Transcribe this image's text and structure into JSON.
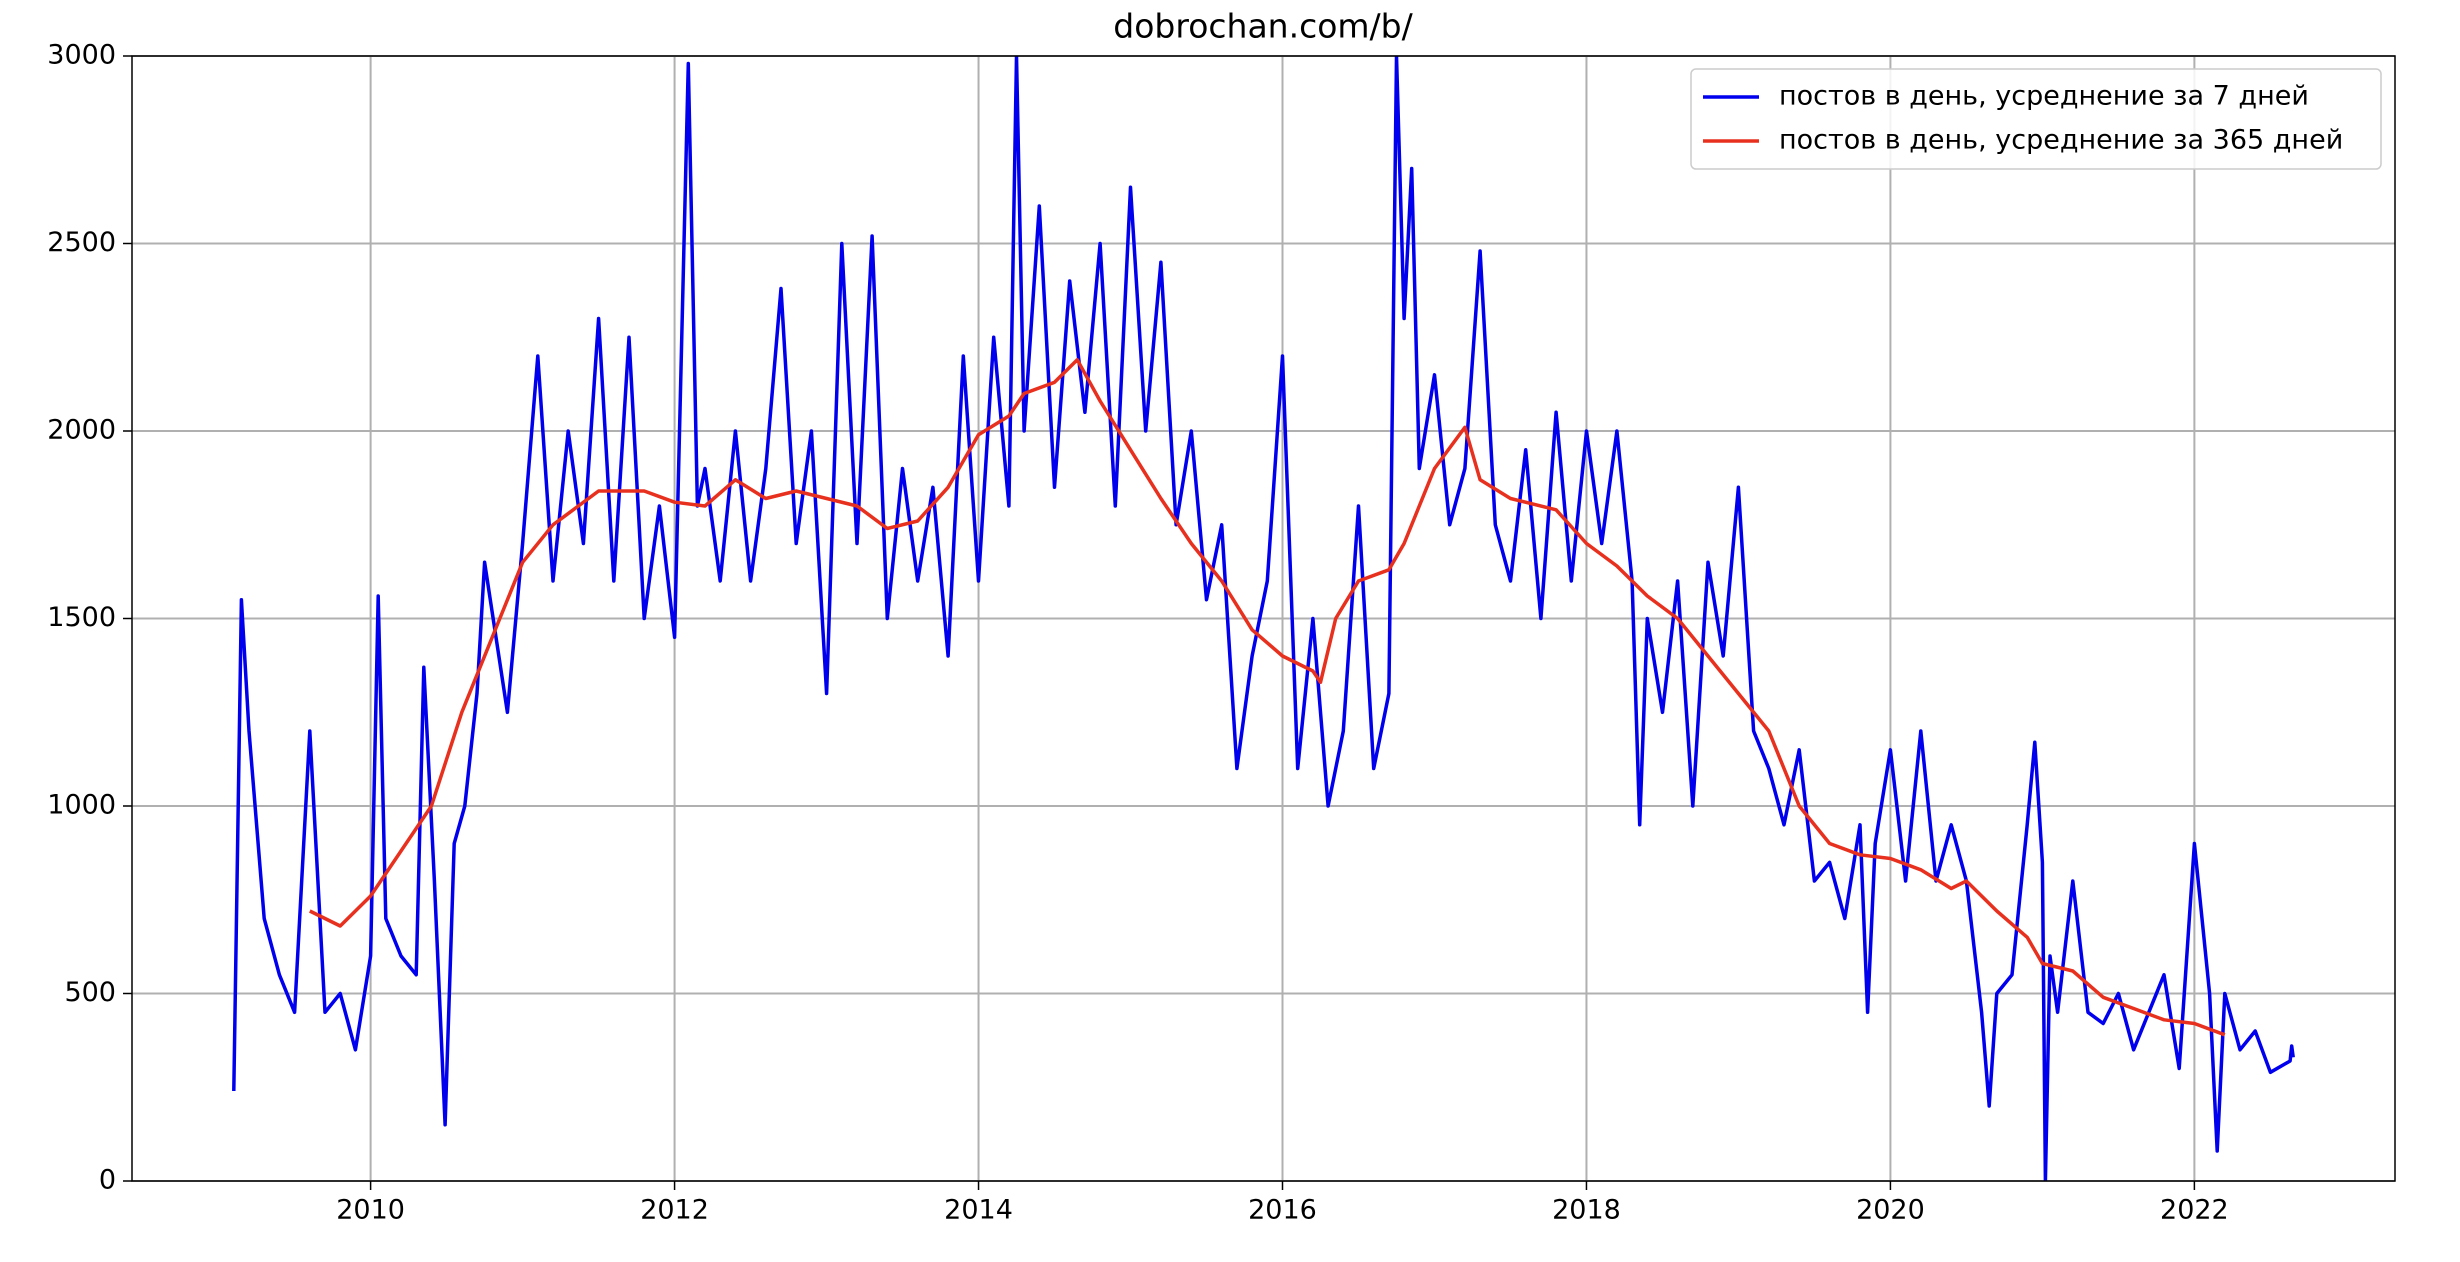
{
  "chart_data": {
    "type": "line",
    "title": "dobrochan.com/b/",
    "xlim": [
      2008.43,
      2023.32
    ],
    "ylim": [
      0,
      3000
    ],
    "xticks": [
      2010,
      2012,
      2014,
      2016,
      2018,
      2020,
      2022
    ],
    "yticks": [
      0,
      500,
      1000,
      1500,
      2000,
      2500,
      3000
    ],
    "grid": true,
    "legend": "upper right",
    "series": [
      {
        "name": "постов в день, усреднение за 7 дней",
        "color": "#0000ee",
        "x": [
          2009.1,
          2009.15,
          2009.2,
          2009.3,
          2009.4,
          2009.5,
          2009.6,
          2009.7,
          2009.8,
          2009.9,
          2010.0,
          2010.05,
          2010.1,
          2010.2,
          2010.3,
          2010.35,
          2010.42,
          2010.49,
          2010.55,
          2010.62,
          2010.7,
          2010.75,
          2010.9,
          2011.0,
          2011.1,
          2011.2,
          2011.3,
          2011.4,
          2011.5,
          2011.6,
          2011.7,
          2011.8,
          2011.9,
          2012.0,
          2012.09,
          2012.15,
          2012.2,
          2012.3,
          2012.4,
          2012.5,
          2012.6,
          2012.7,
          2012.8,
          2012.9,
          2013.0,
          2013.1,
          2013.2,
          2013.3,
          2013.4,
          2013.5,
          2013.6,
          2013.7,
          2013.8,
          2013.9,
          2014.0,
          2014.1,
          2014.2,
          2014.25,
          2014.3,
          2014.4,
          2014.5,
          2014.6,
          2014.7,
          2014.8,
          2014.9,
          2015.0,
          2015.1,
          2015.2,
          2015.3,
          2015.4,
          2015.5,
          2015.6,
          2015.7,
          2015.8,
          2015.9,
          2016.0,
          2016.1,
          2016.2,
          2016.3,
          2016.4,
          2016.5,
          2016.6,
          2016.7,
          2016.75,
          2016.8,
          2016.85,
          2016.9,
          2017.0,
          2017.1,
          2017.2,
          2017.3,
          2017.4,
          2017.5,
          2017.6,
          2017.7,
          2017.8,
          2017.9,
          2018.0,
          2018.1,
          2018.2,
          2018.3,
          2018.35,
          2018.4,
          2018.5,
          2018.6,
          2018.7,
          2018.8,
          2018.9,
          2019.0,
          2019.1,
          2019.2,
          2019.3,
          2019.4,
          2019.5,
          2019.6,
          2019.7,
          2019.8,
          2019.85,
          2019.9,
          2020.0,
          2020.1,
          2020.2,
          2020.3,
          2020.4,
          2020.5,
          2020.6,
          2020.65,
          2020.7,
          2020.8,
          2020.9,
          2020.95,
          2021.0,
          2021.02,
          2021.05,
          2021.1,
          2021.2,
          2021.3,
          2021.4,
          2021.5,
          2021.6,
          2021.7,
          2021.8,
          2021.9,
          2022.0,
          2022.1,
          2022.15,
          2022.2,
          2022.3,
          2022.4,
          2022.5,
          2022.63,
          2022.64,
          2022.65
        ],
        "values": [
          240,
          1550,
          1200,
          700,
          550,
          450,
          1200,
          450,
          500,
          350,
          600,
          1560,
          700,
          600,
          550,
          1370,
          800,
          150,
          900,
          1000,
          1300,
          1650,
          1250,
          1700,
          2200,
          1600,
          2000,
          1700,
          2300,
          1600,
          2250,
          1500,
          1800,
          1450,
          2980,
          1800,
          1900,
          1600,
          2000,
          1600,
          1900,
          2380,
          1700,
          2000,
          1300,
          2500,
          1700,
          2520,
          1500,
          1900,
          1600,
          1850,
          1400,
          2200,
          1600,
          2250,
          1800,
          3000,
          2000,
          2600,
          1850,
          2400,
          2050,
          2500,
          1800,
          2650,
          2000,
          2450,
          1750,
          2000,
          1550,
          1750,
          1100,
          1400,
          1600,
          2200,
          1100,
          1500,
          1000,
          1200,
          1800,
          1100,
          1300,
          3000,
          2300,
          2700,
          1900,
          2150,
          1750,
          1900,
          2480,
          1750,
          1600,
          1950,
          1500,
          2050,
          1600,
          2000,
          1700,
          2000,
          1600,
          950,
          1500,
          1250,
          1600,
          1000,
          1650,
          1400,
          1850,
          1200,
          1100,
          950,
          1150,
          800,
          850,
          700,
          950,
          450,
          900,
          1150,
          800,
          1200,
          800,
          950,
          800,
          450,
          200,
          500,
          550,
          950,
          1170,
          850,
          0,
          600,
          450,
          800,
          450,
          420,
          500,
          350,
          450,
          550,
          300,
          900,
          500,
          80,
          500,
          350,
          400,
          290,
          320,
          360,
          330
        ]
      },
      {
        "name": "постов в день, усреднение за 365 дней",
        "color": "#e8301e",
        "x": [
          2009.6,
          2009.8,
          2010.0,
          2010.2,
          2010.4,
          2010.6,
          2010.8,
          2011.0,
          2011.2,
          2011.5,
          2011.8,
          2012.0,
          2012.2,
          2012.4,
          2012.6,
          2012.8,
          2013.0,
          2013.2,
          2013.4,
          2013.6,
          2013.8,
          2014.0,
          2014.2,
          2014.3,
          2014.5,
          2014.65,
          2014.8,
          2015.0,
          2015.2,
          2015.4,
          2015.6,
          2015.8,
          2016.0,
          2016.2,
          2016.25,
          2016.35,
          2016.5,
          2016.7,
          2016.8,
          2017.0,
          2017.2,
          2017.3,
          2017.5,
          2017.8,
          2018.0,
          2018.2,
          2018.4,
          2018.6,
          2018.8,
          2019.0,
          2019.2,
          2019.4,
          2019.6,
          2019.8,
          2020.0,
          2020.2,
          2020.4,
          2020.5,
          2020.7,
          2020.9,
          2021.0,
          2021.2,
          2021.4,
          2021.6,
          2021.8,
          2022.0,
          2022.2
        ],
        "values": [
          720,
          680,
          760,
          880,
          1000,
          1250,
          1450,
          1650,
          1750,
          1840,
          1840,
          1810,
          1800,
          1870,
          1820,
          1840,
          1820,
          1800,
          1740,
          1760,
          1850,
          1990,
          2040,
          2100,
          2130,
          2190,
          2080,
          1950,
          1820,
          1700,
          1600,
          1470,
          1400,
          1360,
          1330,
          1500,
          1600,
          1630,
          1700,
          1900,
          2010,
          1870,
          1820,
          1790,
          1700,
          1640,
          1560,
          1500,
          1400,
          1300,
          1200,
          1000,
          900,
          870,
          860,
          830,
          780,
          800,
          720,
          650,
          580,
          560,
          490,
          460,
          430,
          420,
          390
        ]
      }
    ]
  }
}
